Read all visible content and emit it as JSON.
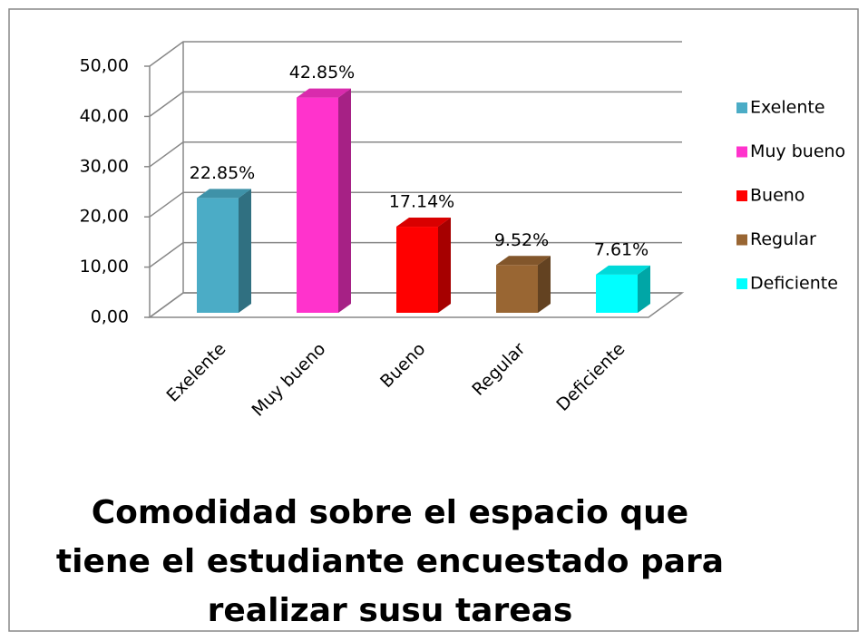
{
  "chart_data": {
    "type": "bar3d",
    "title": [
      "Comodidad sobre el espacio que",
      "tiene el estudiante encuestado para",
      "realizar susu tareas"
    ],
    "categories": [
      "Exelente",
      "Muy bueno",
      "Bueno",
      "Regular",
      "Deficiente"
    ],
    "values": [
      22.85,
      42.85,
      17.14,
      9.52,
      7.61
    ],
    "value_labels": [
      "22.85%",
      "42.85%",
      "17.14%",
      "9.52%",
      "7.61%"
    ],
    "colors": [
      "#4bacc6",
      "#ff33cc",
      "#ff0000",
      "#996633",
      "#00ffff"
    ],
    "ylim": [
      0,
      50
    ],
    "yticks": [
      {
        "value": 0,
        "label": "0,00"
      },
      {
        "value": 10,
        "label": "10,00"
      },
      {
        "value": 20,
        "label": "20,00"
      },
      {
        "value": 30,
        "label": "30,00"
      },
      {
        "value": 40,
        "label": "40,00"
      },
      {
        "value": 50,
        "label": "50,00"
      }
    ],
    "grid": true,
    "legend": "right"
  }
}
